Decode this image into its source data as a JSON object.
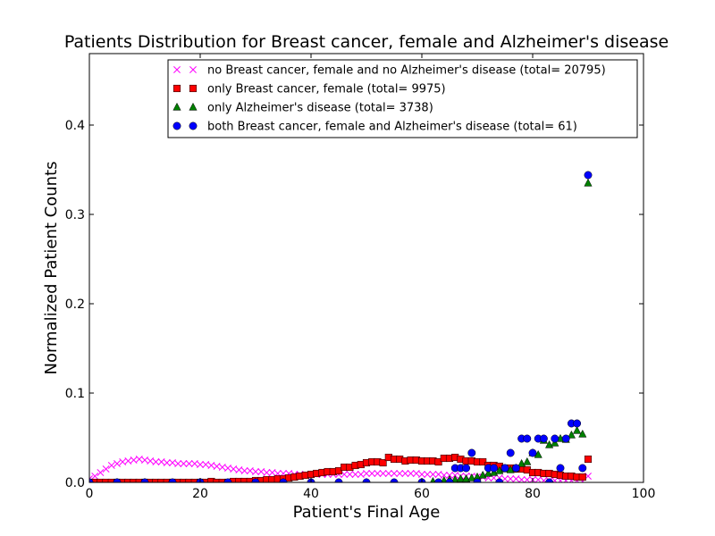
{
  "chart_data": {
    "type": "scatter",
    "title": "Patients Distribution for Breast cancer, female and Alzheimer's disease",
    "xlabel": "Patient's Final Age",
    "ylabel": "Normalized Patient Counts",
    "xlim": [
      0,
      100
    ],
    "ylim": [
      0,
      0.48
    ],
    "xticks": [
      "0",
      "20",
      "40",
      "60",
      "80",
      "100"
    ],
    "yticks": [
      "0.0",
      "0.1",
      "0.2",
      "0.3",
      "0.4"
    ],
    "grid": false,
    "legend_position": "top-right",
    "series": [
      {
        "name": "no Breast cancer, female and no Alzheimer's disease (total= 20795)",
        "marker": "x",
        "color": "#ff00ff",
        "x": [
          0,
          1,
          2,
          3,
          4,
          5,
          6,
          7,
          8,
          9,
          10,
          11,
          12,
          13,
          14,
          15,
          16,
          17,
          18,
          19,
          20,
          21,
          22,
          23,
          24,
          25,
          26,
          27,
          28,
          29,
          30,
          31,
          32,
          33,
          34,
          35,
          36,
          37,
          38,
          39,
          40,
          41,
          42,
          43,
          44,
          45,
          46,
          47,
          48,
          49,
          50,
          51,
          52,
          53,
          54,
          55,
          56,
          57,
          58,
          59,
          60,
          61,
          62,
          63,
          64,
          65,
          66,
          67,
          68,
          69,
          70,
          71,
          72,
          73,
          74,
          75,
          76,
          77,
          78,
          79,
          80,
          81,
          82,
          83,
          84,
          85,
          86,
          87,
          88,
          89,
          90
        ],
        "y": [
          0.004,
          0.007,
          0.011,
          0.015,
          0.019,
          0.021,
          0.023,
          0.024,
          0.025,
          0.026,
          0.025,
          0.024,
          0.023,
          0.023,
          0.022,
          0.022,
          0.021,
          0.021,
          0.021,
          0.021,
          0.02,
          0.02,
          0.019,
          0.018,
          0.017,
          0.016,
          0.015,
          0.014,
          0.013,
          0.013,
          0.012,
          0.012,
          0.011,
          0.011,
          0.01,
          0.01,
          0.01,
          0.009,
          0.009,
          0.009,
          0.009,
          0.009,
          0.009,
          0.009,
          0.009,
          0.009,
          0.009,
          0.009,
          0.009,
          0.009,
          0.01,
          0.01,
          0.01,
          0.01,
          0.01,
          0.01,
          0.01,
          0.01,
          0.01,
          0.01,
          0.009,
          0.009,
          0.009,
          0.009,
          0.008,
          0.008,
          0.008,
          0.007,
          0.007,
          0.007,
          0.006,
          0.006,
          0.005,
          0.005,
          0.005,
          0.004,
          0.004,
          0.004,
          0.003,
          0.003,
          0.003,
          0.003,
          0.002,
          0.002,
          0.002,
          0.002,
          0.002,
          0.002,
          0.002,
          0.001,
          0.007
        ]
      },
      {
        "name": "only Breast cancer, female (total= 9975)",
        "marker": "s",
        "color": "#ff0000",
        "x": [
          0,
          1,
          2,
          3,
          4,
          5,
          6,
          7,
          8,
          9,
          10,
          11,
          12,
          13,
          14,
          15,
          16,
          17,
          18,
          19,
          20,
          21,
          22,
          23,
          24,
          25,
          26,
          27,
          28,
          29,
          30,
          31,
          32,
          33,
          34,
          35,
          36,
          37,
          38,
          39,
          40,
          41,
          42,
          43,
          44,
          45,
          46,
          47,
          48,
          49,
          50,
          51,
          52,
          53,
          54,
          55,
          56,
          57,
          58,
          59,
          60,
          61,
          62,
          63,
          64,
          65,
          66,
          67,
          68,
          69,
          70,
          71,
          72,
          73,
          74,
          75,
          76,
          77,
          78,
          79,
          80,
          81,
          82,
          83,
          84,
          85,
          86,
          87,
          88,
          89,
          90
        ],
        "y": [
          0,
          0,
          0,
          0,
          0,
          0,
          0,
          0,
          0,
          0,
          0,
          0,
          0,
          0,
          0,
          0,
          0,
          0,
          0,
          0,
          0,
          0,
          0.001,
          0,
          0,
          0,
          0.001,
          0.001,
          0.001,
          0.001,
          0.002,
          0.002,
          0.003,
          0.003,
          0.004,
          0.004,
          0.005,
          0.006,
          0.007,
          0.008,
          0.009,
          0.01,
          0.011,
          0.012,
          0.012,
          0.013,
          0.017,
          0.017,
          0.019,
          0.02,
          0.022,
          0.023,
          0.023,
          0.022,
          0.028,
          0.026,
          0.026,
          0.024,
          0.025,
          0.025,
          0.024,
          0.024,
          0.024,
          0.023,
          0.027,
          0.027,
          0.028,
          0.026,
          0.024,
          0.024,
          0.023,
          0.023,
          0.019,
          0.019,
          0.018,
          0.016,
          0.016,
          0.015,
          0.015,
          0.014,
          0.011,
          0.011,
          0.01,
          0.01,
          0.009,
          0.008,
          0.007,
          0.007,
          0.006,
          0.006,
          0.026
        ]
      },
      {
        "name": "only Alzheimer's disease (total= 3738)",
        "marker": "^",
        "color": "#008000",
        "x": [
          0,
          5,
          10,
          20,
          30,
          40,
          50,
          60,
          62,
          64,
          65,
          66,
          67,
          68,
          69,
          70,
          71,
          72,
          73,
          74,
          75,
          76,
          77,
          78,
          79,
          80,
          81,
          82,
          83,
          84,
          85,
          86,
          87,
          88,
          89,
          90
        ],
        "y": [
          0,
          0,
          0,
          0,
          0,
          0,
          0,
          0,
          0.001,
          0.002,
          0.003,
          0.003,
          0.004,
          0.004,
          0.005,
          0.006,
          0.008,
          0.01,
          0.011,
          0.013,
          0.015,
          0.014,
          0.016,
          0.021,
          0.023,
          0.033,
          0.031,
          0.047,
          0.042,
          0.044,
          0.049,
          0.048,
          0.053,
          0.058,
          0.054,
          0.335
        ]
      },
      {
        "name": "both Breast cancer, female and Alzheimer's disease (total= 61)",
        "marker": "o",
        "color": "#0000ff",
        "x": [
          0,
          5,
          10,
          15,
          20,
          25,
          30,
          35,
          40,
          45,
          50,
          55,
          60,
          63,
          65,
          66,
          67,
          68,
          69,
          70,
          72,
          73,
          74,
          75,
          76,
          77,
          78,
          79,
          80,
          81,
          82,
          83,
          84,
          85,
          86,
          87,
          88,
          89,
          90
        ],
        "y": [
          0,
          0,
          0,
          0,
          0,
          0,
          0,
          0,
          0,
          0,
          0,
          0,
          0,
          0,
          0,
          0.016,
          0.016,
          0.016,
          0.033,
          0,
          0.016,
          0.016,
          0,
          0.016,
          0.033,
          0.016,
          0.049,
          0.049,
          0.033,
          0.049,
          0.049,
          0,
          0.049,
          0.016,
          0.049,
          0.066,
          0.066,
          0.016,
          0.344
        ]
      }
    ]
  }
}
